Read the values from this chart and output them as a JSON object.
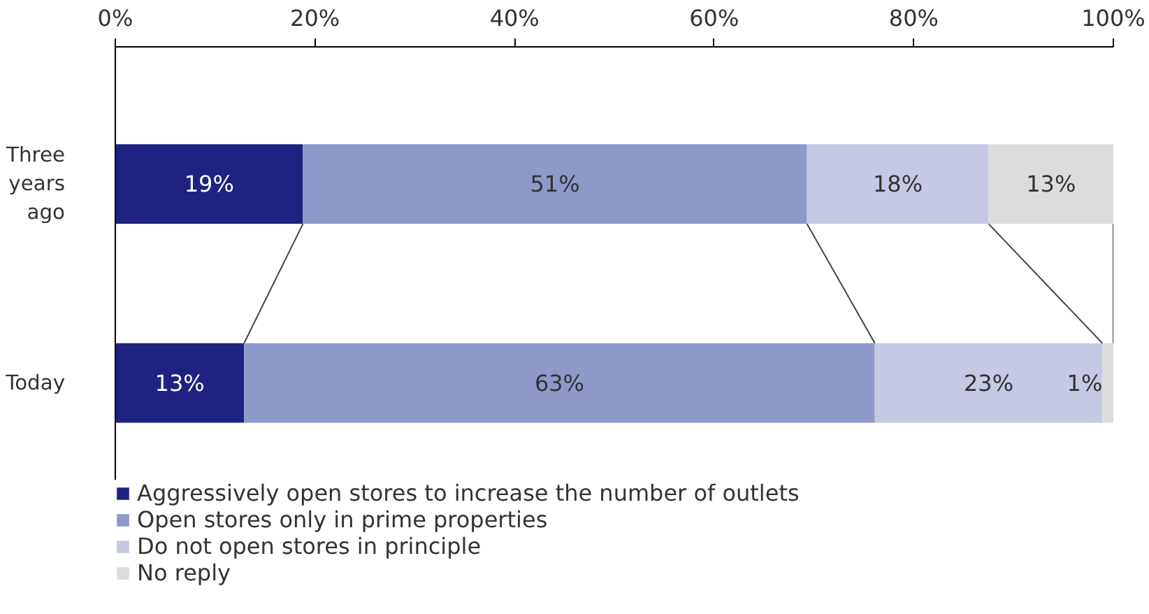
{
  "chart_data": {
    "type": "bar",
    "orientation": "horizontal",
    "stacked": true,
    "categories": [
      "Three years ago",
      "Today"
    ],
    "series": [
      {
        "name": "Aggressively open stores to increase the number of outlets",
        "color": "#1f2280",
        "values": [
          18.8,
          12.9
        ],
        "value_labels": [
          "19%",
          "13%"
        ]
      },
      {
        "name": "Open stores only in prime properties",
        "color": "#8e99c9",
        "values": [
          50.5,
          63.2
        ],
        "value_labels": [
          "51%",
          "63%"
        ]
      },
      {
        "name": "Do not open stores in principle",
        "color": "#c5c9e4",
        "values": [
          18.2,
          22.8
        ],
        "value_labels": [
          "18%",
          "23%"
        ]
      },
      {
        "name": "No reply",
        "color": "#dcdcdc",
        "values": [
          12.5,
          1.1
        ],
        "value_labels": [
          "13%",
          "1%"
        ]
      }
    ],
    "xlim": [
      0,
      100
    ],
    "xticks": [
      {
        "value": 0,
        "label": "0%"
      },
      {
        "value": 20,
        "label": "20%"
      },
      {
        "value": 40,
        "label": "40%"
      },
      {
        "value": 60,
        "label": "60%"
      },
      {
        "value": 80,
        "label": "80%"
      },
      {
        "value": 100,
        "label": "100%"
      }
    ],
    "grid": false,
    "legend": "bottom"
  }
}
